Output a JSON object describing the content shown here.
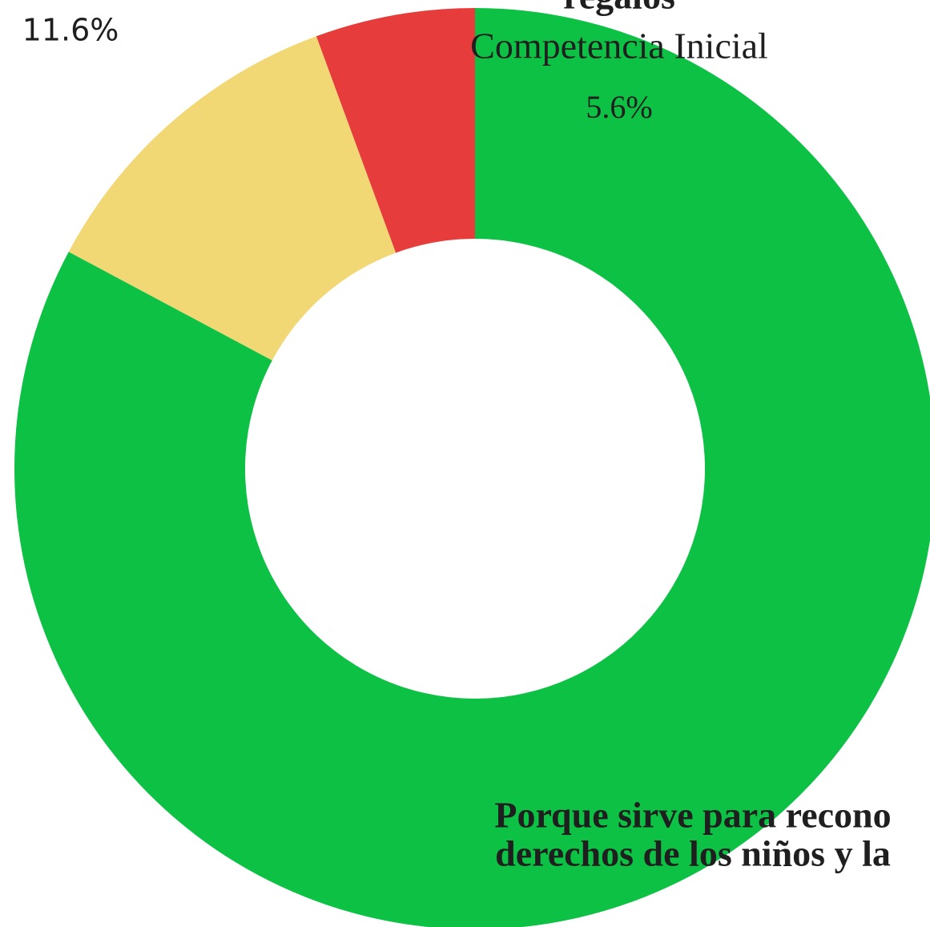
{
  "chart_data": {
    "type": "donut",
    "categories": [
      "Competencia Inicial",
      "regalos",
      [
        "Porque sirve para recono",
        "derechos de los niños y la"
      ]
    ],
    "values": [
      5.6,
      11.6,
      82.8
    ],
    "value_labels": [
      "5.6%",
      "11.6%",
      null
    ],
    "colors": [
      "#e63c3c",
      "#f2d874",
      "#0dc145"
    ],
    "direction": "counterclockwise"
  }
}
